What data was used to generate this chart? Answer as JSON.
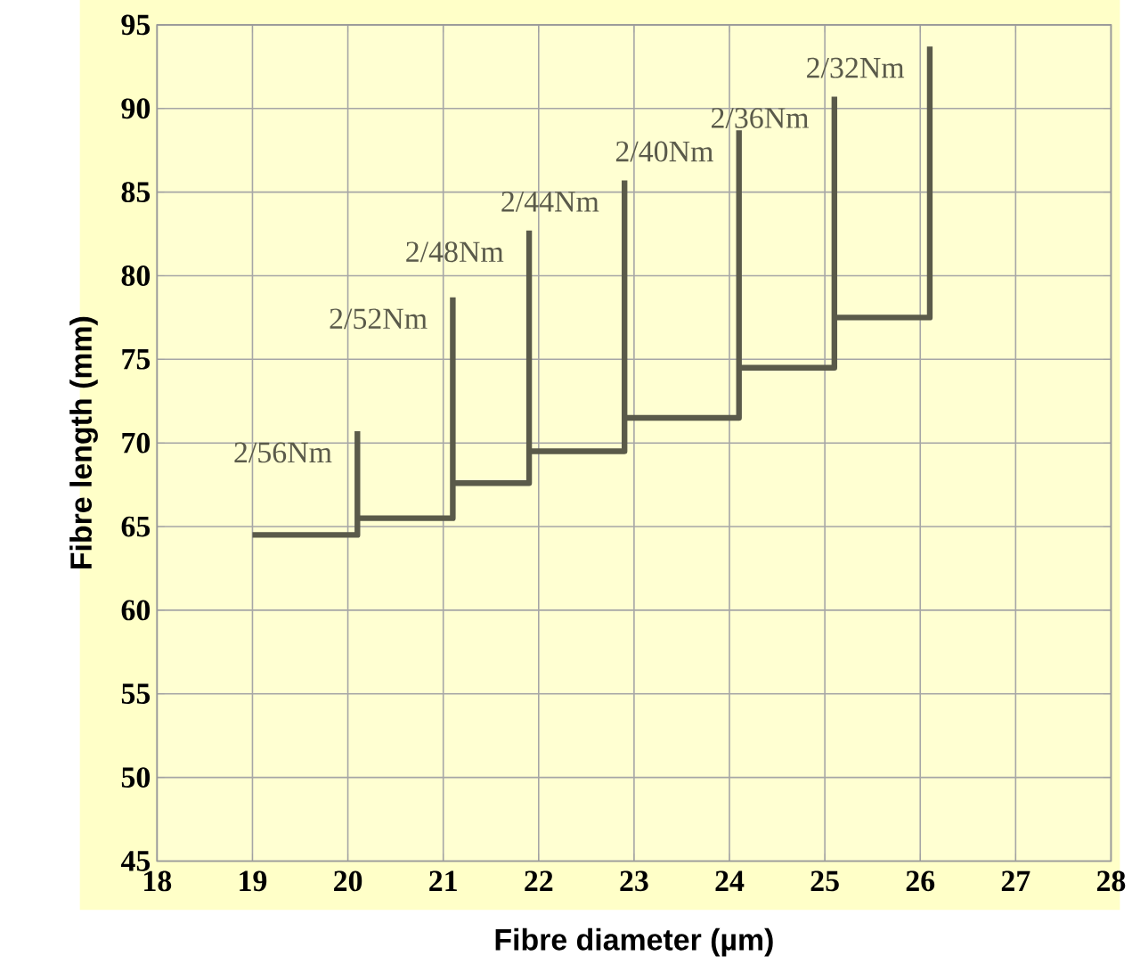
{
  "chart_data": {
    "type": "line",
    "xlabel": "Fibre diameter (µm)",
    "ylabel": "Fibre length (mm)",
    "series": [
      {
        "name": "2/56Nm",
        "color": "#5a5a4a",
        "x": [
          19,
          20.1,
          20.1
        ],
        "values": [
          64.5,
          64.5,
          70.7
        ]
      },
      {
        "name": "2/52Nm",
        "color": "#5a5a4a",
        "x": [
          20.1,
          21.1,
          21.1
        ],
        "values": [
          65.5,
          65.5,
          78.7
        ]
      },
      {
        "name": "2/48Nm",
        "color": "#5a5a4a",
        "x": [
          21.1,
          21.9,
          21.9
        ],
        "values": [
          67.6,
          67.6,
          82.7
        ]
      },
      {
        "name": "2/44Nm",
        "color": "#5a5a4a",
        "x": [
          21.9,
          22.9,
          22.9
        ],
        "values": [
          69.5,
          69.5,
          85.7
        ]
      },
      {
        "name": "2/40Nm",
        "color": "#5a5a4a",
        "x": [
          22.9,
          24.1,
          24.1
        ],
        "values": [
          71.5,
          71.5,
          88.7
        ]
      },
      {
        "name": "2/36Nm",
        "color": "#5a5a4a",
        "x": [
          24.1,
          25.1,
          25.1
        ],
        "values": [
          74.5,
          74.5,
          90.7
        ]
      },
      {
        "name": "2/32Nm",
        "color": "#5a5a4a",
        "x": [
          25.1,
          26.1,
          26.1
        ],
        "values": [
          77.5,
          77.5,
          93.7
        ]
      }
    ],
    "xlim": [
      18,
      28
    ],
    "xticks": [
      18,
      19,
      20,
      21,
      22,
      23,
      24,
      25,
      26,
      27,
      28
    ],
    "ylim": [
      45,
      95
    ],
    "yticks": [
      45,
      50,
      55,
      60,
      65,
      70,
      75,
      80,
      85,
      90,
      95
    ],
    "grid": true,
    "marker": "none",
    "line_style": "solid"
  }
}
